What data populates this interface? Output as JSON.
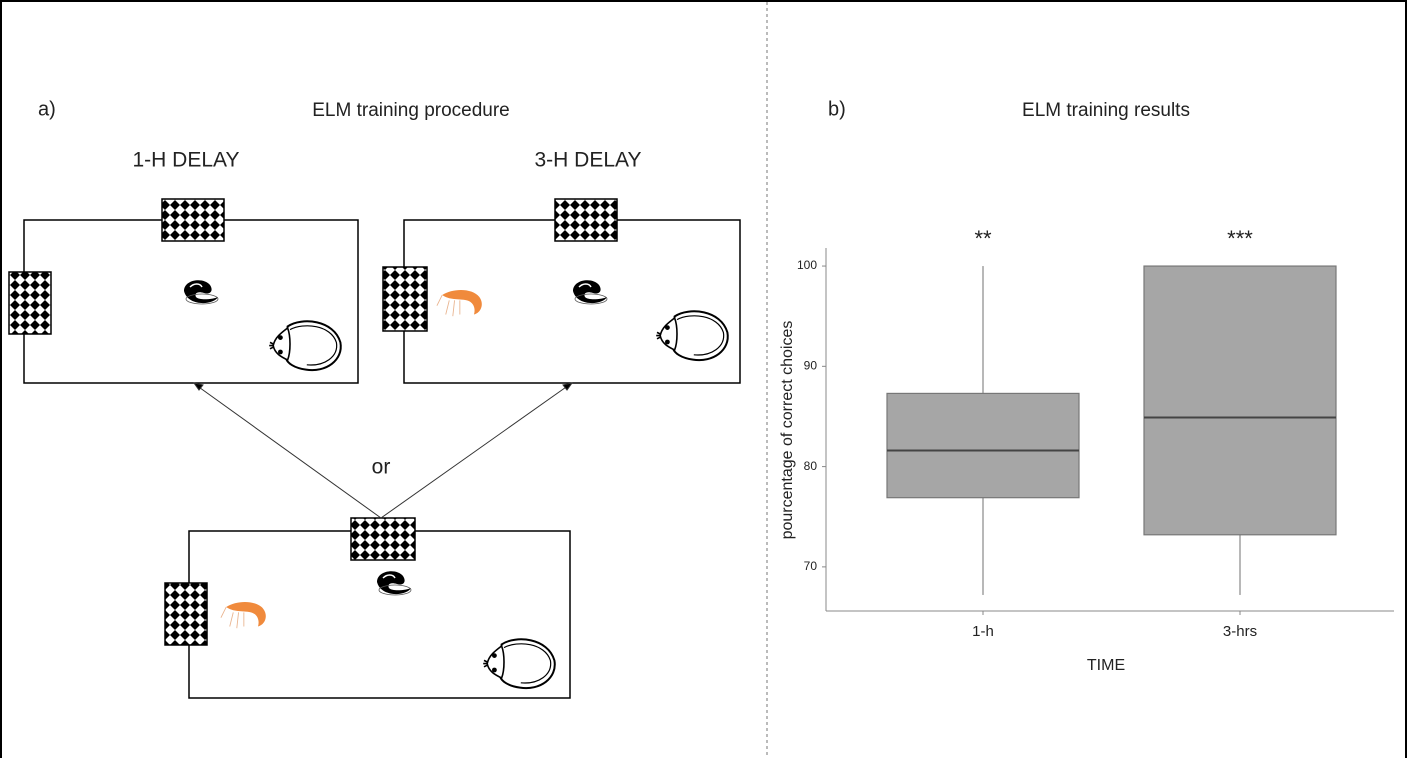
{
  "panel_a": {
    "label": "a)",
    "title": "ELM training procedure",
    "left_title": "1-H DELAY",
    "right_title": "3-H DELAY",
    "connector": "or"
  },
  "chart_data": {
    "type": "box",
    "panel_label": "b)",
    "title": "ELM training results",
    "x_label": "TIME",
    "y_label": "pourcentage of correct choices",
    "categories": [
      "1-h",
      "3-hrs"
    ],
    "boxes": [
      {
        "min": 67.2,
        "q1": 76.9,
        "median": 81.6,
        "q3": 87.3,
        "max": 100
      },
      {
        "min": 67.2,
        "q1": 73.2,
        "median": 84.9,
        "q3": 100,
        "max": 100
      }
    ],
    "annotations": [
      "**",
      "***"
    ],
    "color": "#a6a6a6",
    "ylim": [
      65.6,
      101.8
    ],
    "yticks": [
      70,
      80,
      90,
      100
    ],
    "grid": false
  }
}
